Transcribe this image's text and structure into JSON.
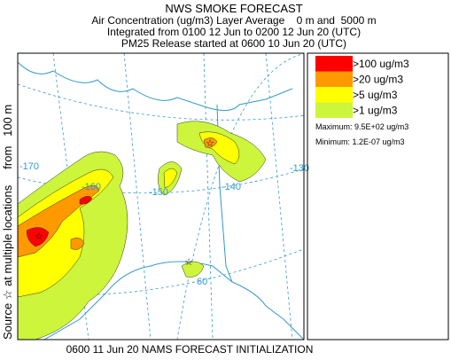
{
  "header": {
    "title": "NWS SMOKE FORECAST",
    "lines": [
      "Air Concentration (ug/m3) Layer Average    0 m and  5000 m",
      "Integrated from 0100 12 Jun to 0200 12 Jun 20 (UTC)",
      "PM25 Release started at 0600 10 Jun 20 (UTC)"
    ]
  },
  "side_label": "Source ☆ at multiple locations     from   100 m",
  "map": {
    "labels": [
      "-170",
      "-160",
      "-150",
      "-140",
      "-130",
      "60"
    ]
  },
  "legend": {
    "items": [
      {
        "label": ">100 ug/m3",
        "color": "#ff0000"
      },
      {
        "label": ">20 ug/m3",
        "color": "#ff9900"
      },
      {
        "label": ">5 ug/m3",
        "color": "#ffff00"
      },
      {
        "label": ">1 ug/m3",
        "color": "#ccf53c"
      }
    ],
    "maximum": "Maximum: 9.5E+02 ug/m3",
    "minimum": "Minimum: 1.2E-07 ug/m3"
  },
  "footer": "0600 11 Jun 20 NAMS FORECAST INITIALIZATION"
}
